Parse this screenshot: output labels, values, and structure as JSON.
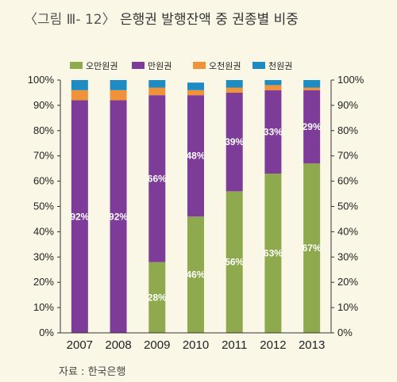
{
  "page": {
    "figure_label": "〈그림 Ⅲ- 12〉",
    "title": "은행권 발행잔액 중 권종별 비중",
    "source": "자료 : 한국은행"
  },
  "chart_data": {
    "type": "bar",
    "stacked": true,
    "categories": [
      "2007",
      "2008",
      "2009",
      "2010",
      "2011",
      "2012",
      "2013"
    ],
    "series": [
      {
        "name": "오만원권",
        "color": "#8faa4e",
        "values": [
          0,
          0,
          28,
          46,
          56,
          63,
          67
        ],
        "labels": [
          "",
          "",
          "28%",
          "46%",
          "56%",
          "63%",
          "67%"
        ]
      },
      {
        "name": "만원권",
        "color": "#7d3c98",
        "values": [
          92,
          92,
          66,
          48,
          39,
          33,
          29
        ],
        "labels": [
          "92%",
          "92%",
          "66%",
          "48%",
          "39%",
          "33%",
          "29%"
        ]
      },
      {
        "name": "오천원권",
        "color": "#f0923a",
        "values": [
          4,
          4,
          3,
          2,
          2,
          2,
          1
        ],
        "labels": [
          "",
          "",
          "",
          "",
          "",
          "",
          ""
        ]
      },
      {
        "name": "천원권",
        "color": "#1e8bc3",
        "values": [
          4,
          4,
          3,
          3,
          3,
          2,
          3
        ],
        "labels": [
          "",
          "",
          "",
          "",
          "",
          "",
          ""
        ]
      }
    ],
    "y_ticks": [
      "0%",
      "10%",
      "20%",
      "30%",
      "40%",
      "50%",
      "60%",
      "70%",
      "80%",
      "90%",
      "100%"
    ],
    "ylim": [
      0,
      100
    ],
    "y_axis_both_sides": true,
    "grid": false,
    "legend": "top"
  }
}
